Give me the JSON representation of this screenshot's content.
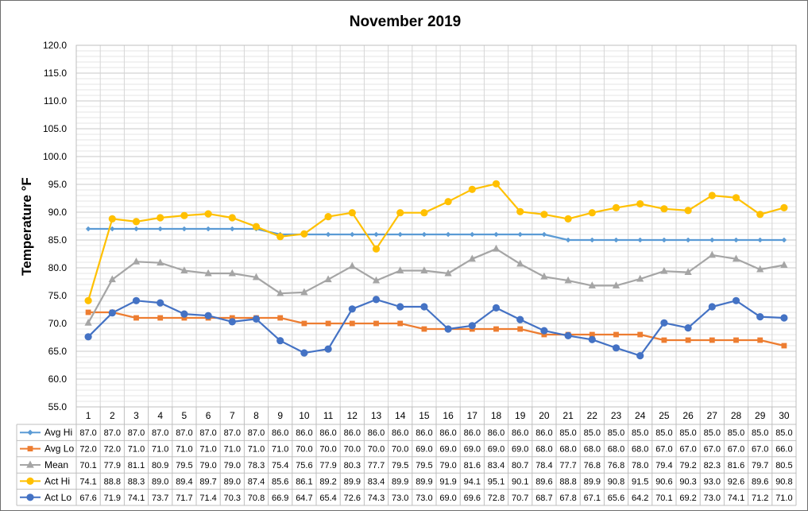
{
  "chart_data": {
    "type": "line",
    "title": "November 2019",
    "xlabel": "",
    "ylabel": "Temperature °F",
    "ylim": [
      55.0,
      120.0
    ],
    "ystep": 5.0,
    "grid": true,
    "legend": "data-table",
    "categories": [
      "1",
      "2",
      "3",
      "4",
      "5",
      "6",
      "7",
      "8",
      "9",
      "10",
      "11",
      "12",
      "13",
      "14",
      "15",
      "16",
      "17",
      "18",
      "19",
      "20",
      "21",
      "22",
      "23",
      "24",
      "25",
      "26",
      "27",
      "28",
      "29",
      "30"
    ],
    "series": [
      {
        "name": "Avg Hi",
        "color": "#5b9bd5",
        "marker": "diamond",
        "values": [
          87.0,
          87.0,
          87.0,
          87.0,
          87.0,
          87.0,
          87.0,
          87.0,
          86.0,
          86.0,
          86.0,
          86.0,
          86.0,
          86.0,
          86.0,
          86.0,
          86.0,
          86.0,
          86.0,
          86.0,
          85.0,
          85.0,
          85.0,
          85.0,
          85.0,
          85.0,
          85.0,
          85.0,
          85.0,
          85.0
        ]
      },
      {
        "name": "Avg Lo",
        "color": "#ed7d31",
        "marker": "square",
        "values": [
          72.0,
          72.0,
          71.0,
          71.0,
          71.0,
          71.0,
          71.0,
          71.0,
          71.0,
          70.0,
          70.0,
          70.0,
          70.0,
          70.0,
          69.0,
          69.0,
          69.0,
          69.0,
          69.0,
          68.0,
          68.0,
          68.0,
          68.0,
          68.0,
          67.0,
          67.0,
          67.0,
          67.0,
          67.0,
          66.0
        ]
      },
      {
        "name": "Mean",
        "color": "#a5a5a5",
        "marker": "triangle",
        "values": [
          70.1,
          77.9,
          81.1,
          80.9,
          79.5,
          79.0,
          79.0,
          78.3,
          75.4,
          75.6,
          77.9,
          80.3,
          77.7,
          79.5,
          79.5,
          79.0,
          81.6,
          83.4,
          80.7,
          78.4,
          77.7,
          76.8,
          76.8,
          78.0,
          79.4,
          79.2,
          82.3,
          81.6,
          79.7,
          80.5
        ]
      },
      {
        "name": "Act Hi",
        "color": "#ffc000",
        "marker": "circle",
        "values": [
          74.1,
          88.8,
          88.3,
          89.0,
          89.4,
          89.7,
          89.0,
          87.4,
          85.6,
          86.1,
          89.2,
          89.9,
          83.4,
          89.9,
          89.9,
          91.9,
          94.1,
          95.1,
          90.1,
          89.6,
          88.8,
          89.9,
          90.8,
          91.5,
          90.6,
          90.3,
          93.0,
          92.6,
          89.6,
          90.8
        ]
      },
      {
        "name": "Act Lo",
        "color": "#4472c4",
        "marker": "circle",
        "values": [
          67.6,
          71.9,
          74.1,
          73.7,
          71.7,
          71.4,
          70.3,
          70.8,
          66.9,
          64.7,
          65.4,
          72.6,
          74.3,
          73.0,
          73.0,
          69.0,
          69.6,
          72.8,
          70.7,
          68.7,
          67.8,
          67.1,
          65.6,
          64.2,
          70.1,
          69.2,
          73.0,
          74.1,
          71.2,
          71.0
        ]
      }
    ]
  }
}
